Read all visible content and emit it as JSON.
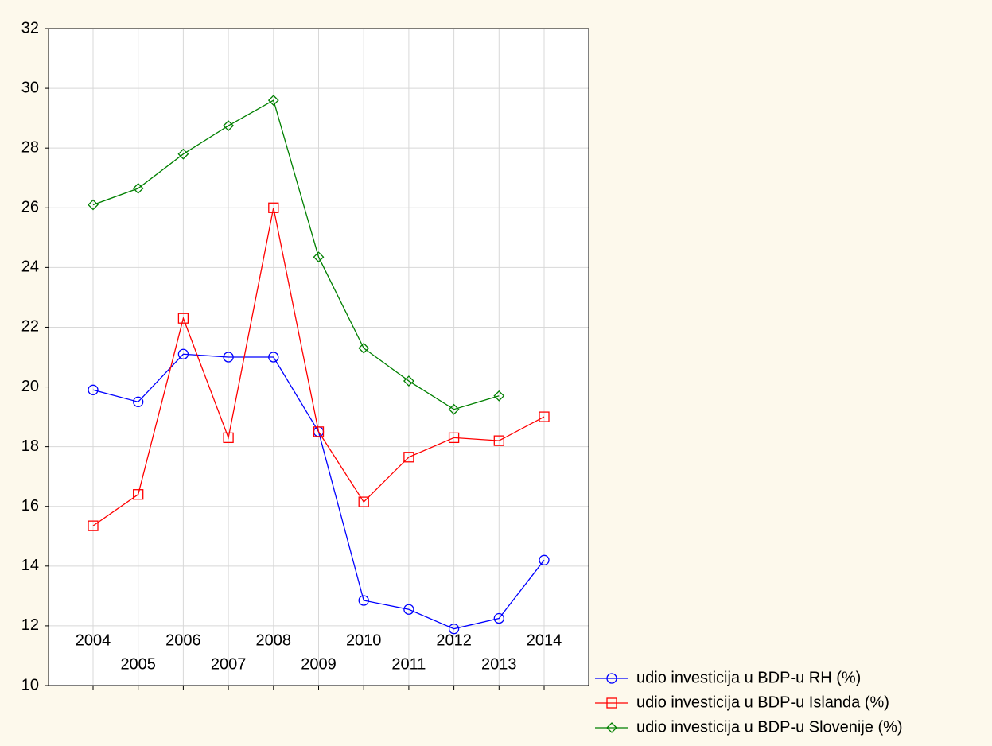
{
  "chart_data": {
    "type": "line",
    "categories": [
      "2004",
      "2005",
      "2006",
      "2007",
      "2008",
      "2009",
      "2010",
      "2011",
      "2012",
      "2013",
      "2014"
    ],
    "series": [
      {
        "name": "udio investicija u BDP-u RH (%)",
        "color": "#0000ff",
        "marker": "circle",
        "values": [
          19.9,
          19.5,
          21.1,
          21.0,
          21.0,
          18.5,
          12.85,
          12.55,
          11.9,
          12.25,
          14.2
        ]
      },
      {
        "name": "udio investicija u BDP-u Islanda (%)",
        "color": "#ff0000",
        "marker": "square",
        "values": [
          15.35,
          16.4,
          22.3,
          18.3,
          26.0,
          18.5,
          16.15,
          17.65,
          18.3,
          18.2,
          19.0
        ]
      },
      {
        "name": "udio investicija u BDP-u Slovenije (%)",
        "color": "#008000",
        "marker": "diamond",
        "values": [
          26.1,
          26.65,
          27.8,
          28.75,
          29.6,
          24.35,
          21.3,
          20.2,
          19.25,
          19.7,
          null
        ]
      }
    ],
    "ylim": [
      10,
      32
    ],
    "yticks": [
      10,
      12,
      14,
      16,
      18,
      20,
      22,
      24,
      26,
      28,
      30,
      32
    ],
    "grid": true,
    "legend": "bottom-right"
  }
}
